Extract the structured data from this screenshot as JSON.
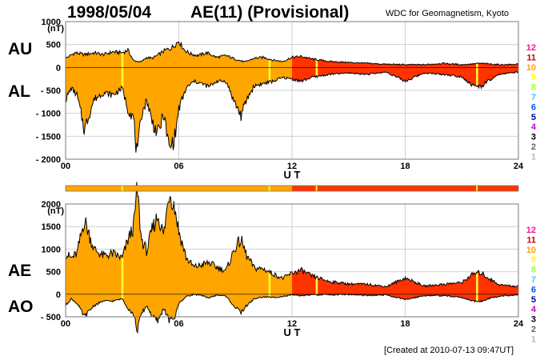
{
  "header": {
    "date": "1998/05/04",
    "index_name": "AE(11) (Provisional)",
    "source": "WDC for Geomagnetism, Kyoto"
  },
  "footer": {
    "created": "[Created at 2010-07-13 09:47UT]"
  },
  "colors": {
    "early": "#ffa500",
    "late": "#ff3300",
    "highlight": "#ffff33",
    "outline": "#000000"
  },
  "chart_data": [
    {
      "type": "area",
      "panel": "upper",
      "left_label_top": "AU",
      "left_label_bottom": "AL",
      "ylabel": "(nT)",
      "xlabel": "U T",
      "ylim": [
        -2000,
        1000
      ],
      "xlim": [
        0,
        24
      ],
      "yticks": [
        1000,
        500,
        0,
        -500,
        -1000,
        -1500,
        -2000
      ],
      "ytick_labels": [
        "1000",
        "500",
        "0",
        "- 500",
        "- 1000",
        "- 1500",
        "- 2000"
      ],
      "xticks": [
        0,
        6,
        12,
        18,
        24
      ],
      "xtick_labels": [
        "00",
        "06",
        "12",
        "18",
        "24"
      ],
      "grid": true,
      "series": [
        {
          "name": "AU",
          "x": [
            0,
            0.5,
            1,
            1.5,
            2,
            2.5,
            3,
            3.3,
            3.6,
            4,
            4.3,
            4.6,
            5,
            5.3,
            5.6,
            6,
            6.3,
            6.6,
            7,
            7.5,
            8,
            8.5,
            9,
            9.5,
            10,
            10.5,
            11,
            11.5,
            12,
            12.5,
            13,
            14,
            15,
            16,
            17,
            18,
            19,
            20,
            21,
            22,
            23,
            24
          ],
          "values": [
            200,
            320,
            280,
            320,
            280,
            340,
            320,
            380,
            150,
            120,
            220,
            200,
            300,
            380,
            420,
            580,
            380,
            300,
            260,
            320,
            220,
            260,
            180,
            120,
            200,
            220,
            160,
            130,
            220,
            240,
            190,
            130,
            110,
            90,
            70,
            60,
            60,
            90,
            60,
            90,
            60,
            70
          ]
        },
        {
          "name": "AL",
          "x": [
            0,
            0.3,
            0.6,
            1,
            1.5,
            2,
            2.5,
            3,
            3.3,
            3.6,
            3.8,
            4,
            4.3,
            4.6,
            4.9,
            5.2,
            5.5,
            5.8,
            6,
            6.4,
            6.8,
            7.2,
            7.6,
            8,
            8.5,
            9,
            9.3,
            9.6,
            10,
            10.5,
            11,
            11.5,
            12,
            12.5,
            13,
            14,
            15,
            16,
            17,
            18,
            19,
            20,
            21,
            21.6,
            22,
            22.4,
            23,
            24
          ],
          "values": [
            -700,
            -450,
            -600,
            -1350,
            -700,
            -550,
            -600,
            -450,
            -900,
            -1100,
            -2000,
            -1050,
            -700,
            -1200,
            -1450,
            -1000,
            -1800,
            -1500,
            -900,
            -450,
            -300,
            -350,
            -420,
            -300,
            -300,
            -800,
            -1050,
            -700,
            -400,
            -350,
            -300,
            -220,
            -250,
            -300,
            -220,
            -150,
            -120,
            -150,
            -100,
            -300,
            -120,
            -150,
            -200,
            -400,
            -420,
            -300,
            -150,
            -100
          ]
        }
      ]
    },
    {
      "type": "area",
      "panel": "lower",
      "left_label_top": "AE",
      "left_label_bottom": "AO",
      "ylabel": "(nT)",
      "xlabel": "U T",
      "ylim": [
        -500,
        2000
      ],
      "xlim": [
        0,
        24
      ],
      "yticks": [
        2000,
        1500,
        1000,
        500,
        0,
        -500
      ],
      "ytick_labels": [
        "2000",
        "1500",
        "1000",
        "500",
        "0",
        "- 500"
      ],
      "xticks": [
        0,
        6,
        12,
        18,
        24
      ],
      "xtick_labels": [
        "00",
        "06",
        "12",
        "18",
        "24"
      ],
      "grid": true,
      "series": [
        {
          "name": "AE",
          "x": [
            0,
            0.3,
            0.6,
            1,
            1.5,
            2,
            2.5,
            3,
            3.3,
            3.6,
            3.8,
            4,
            4.3,
            4.6,
            4.9,
            5.2,
            5.5,
            5.8,
            6,
            6.4,
            6.8,
            7.2,
            7.6,
            8,
            8.5,
            9,
            9.3,
            9.6,
            10,
            10.5,
            11,
            11.5,
            12,
            12.5,
            13,
            14,
            15,
            16,
            17,
            18,
            19,
            20,
            21,
            21.6,
            22,
            22.4,
            23,
            24
          ],
          "values": [
            900,
            800,
            900,
            1650,
            1000,
            850,
            900,
            800,
            1200,
            1500,
            2350,
            1250,
            950,
            1450,
            1750,
            1300,
            2300,
            1900,
            1400,
            800,
            600,
            650,
            700,
            600,
            520,
            1050,
            1200,
            850,
            580,
            560,
            450,
            350,
            470,
            530,
            410,
            280,
            230,
            220,
            170,
            360,
            180,
            220,
            260,
            450,
            480,
            360,
            210,
            170
          ]
        },
        {
          "name": "AO",
          "x": [
            0,
            0.3,
            0.6,
            1,
            1.5,
            2,
            2.5,
            3,
            3.3,
            3.6,
            3.8,
            4,
            4.3,
            4.6,
            4.9,
            5.2,
            5.5,
            5.8,
            6,
            6.4,
            6.8,
            7.2,
            7.6,
            8,
            8.5,
            9,
            9.3,
            9.6,
            10,
            10.5,
            11,
            11.5,
            12,
            12.5,
            13,
            14,
            15,
            16,
            17,
            18,
            19,
            20,
            21,
            21.6,
            22,
            22.4,
            23,
            24
          ],
          "values": [
            -250,
            -100,
            -200,
            -500,
            -250,
            -150,
            -150,
            -100,
            -300,
            -450,
            -800,
            -450,
            -250,
            -500,
            -600,
            -300,
            -600,
            -500,
            -200,
            -50,
            0,
            -30,
            -80,
            -20,
            -40,
            -300,
            -400,
            -250,
            -100,
            -60,
            -70,
            -50,
            -20,
            -30,
            -15,
            -10,
            -5,
            -30,
            -15,
            -120,
            -30,
            -30,
            -70,
            -150,
            -160,
            -100,
            -40,
            -15
          ]
        }
      ]
    }
  ],
  "legend": {
    "station_counts": [
      "12",
      "11",
      "10",
      "9",
      "8",
      "7",
      "6",
      "5",
      "4",
      "3",
      "2",
      "1"
    ],
    "colors": [
      "#ff1493",
      "#cc0000",
      "#ffa500",
      "#ffff00",
      "#99ff33",
      "#33ccff",
      "#0055ff",
      "#000099",
      "#cc00cc",
      "#000000",
      "#666666",
      "#bbbbbb"
    ]
  },
  "station_bar": {
    "segments": [
      {
        "from": 0,
        "to": 12,
        "color_key": "early"
      },
      {
        "from": 12,
        "to": 24,
        "color_key": "late"
      }
    ],
    "highlights": [
      3,
      10.8,
      13.3,
      21.8
    ]
  }
}
